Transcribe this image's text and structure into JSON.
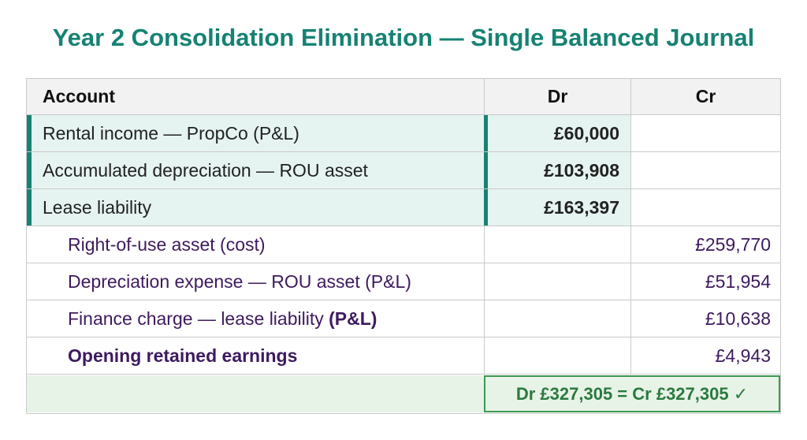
{
  "title": "Year 2 Consolidation Elimination — Single Balanced Journal",
  "headers": {
    "account": "Account",
    "dr": "Dr",
    "cr": "Cr"
  },
  "debits": [
    {
      "account": "Rental income — PropCo (P&L)",
      "amount": "£60,000"
    },
    {
      "account": "Accumulated depreciation — ROU asset",
      "amount": "£103,908"
    },
    {
      "account": "Lease liability",
      "amount": "£163,397"
    }
  ],
  "credits": [
    {
      "account": "Right-of-use asset (cost)",
      "amount": "£259,770"
    },
    {
      "account": "Depreciation expense — ROU asset (P&L)",
      "amount": "£51,954"
    },
    {
      "account": "Finance charge — lease liability",
      "account_suffix": "(P&L)",
      "amount": "£10,638"
    },
    {
      "account": "Opening retained earnings",
      "amount": "£4,943"
    }
  ],
  "total": {
    "dr": "Dr £327,305",
    "equals": " = ",
    "cr": "Cr £327,305",
    "check": " ✓"
  },
  "colors": {
    "title": "#168273",
    "debit_band": "#e6f4f1",
    "credit_text": "#3d1a5e",
    "total_border": "#3c9a52"
  }
}
